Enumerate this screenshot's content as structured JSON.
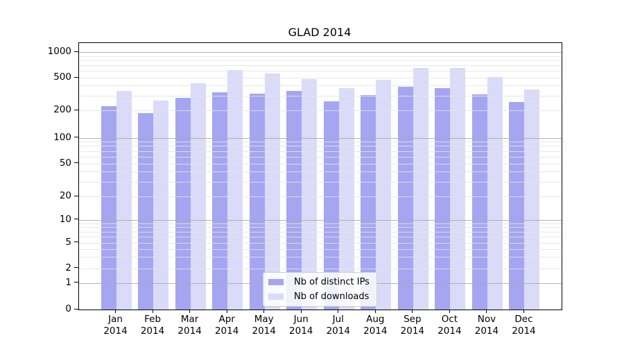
{
  "chart_data": {
    "type": "bar",
    "title": "GLAD 2014",
    "categories": [
      "Jan 2014",
      "Feb 2014",
      "Mar 2014",
      "Apr 2014",
      "May 2014",
      "Jun 2014",
      "Jul 2014",
      "Aug 2014",
      "Sep 2014",
      "Oct 2014",
      "Nov 2014",
      "Dec 2014"
    ],
    "series": [
      {
        "name": "Nb of distinct IPs",
        "color": "#a5a5f1",
        "values": [
          225,
          185,
          285,
          330,
          320,
          345,
          260,
          310,
          385,
          375,
          315,
          255
        ]
      },
      {
        "name": "Nb of downloads",
        "color": "#dadaf9",
        "values": [
          345,
          265,
          430,
          615,
          560,
          480,
          370,
          475,
          645,
          650,
          510,
          360
        ]
      }
    ],
    "xlabel": "",
    "ylabel": "",
    "yscale": "symlog",
    "yticks": [
      0,
      1,
      2,
      5,
      10,
      20,
      50,
      100,
      200,
      500,
      1000
    ],
    "minor_gridlines": [
      2,
      3,
      4,
      5,
      6,
      7,
      8,
      9,
      20,
      30,
      40,
      50,
      60,
      70,
      80,
      90,
      200,
      300,
      400,
      500,
      600,
      700,
      800,
      900
    ],
    "major_gridlines": [
      1,
      10,
      100,
      1000
    ],
    "ylim": [
      0,
      1270
    ],
    "grid": true,
    "legend_position": "lower center"
  }
}
